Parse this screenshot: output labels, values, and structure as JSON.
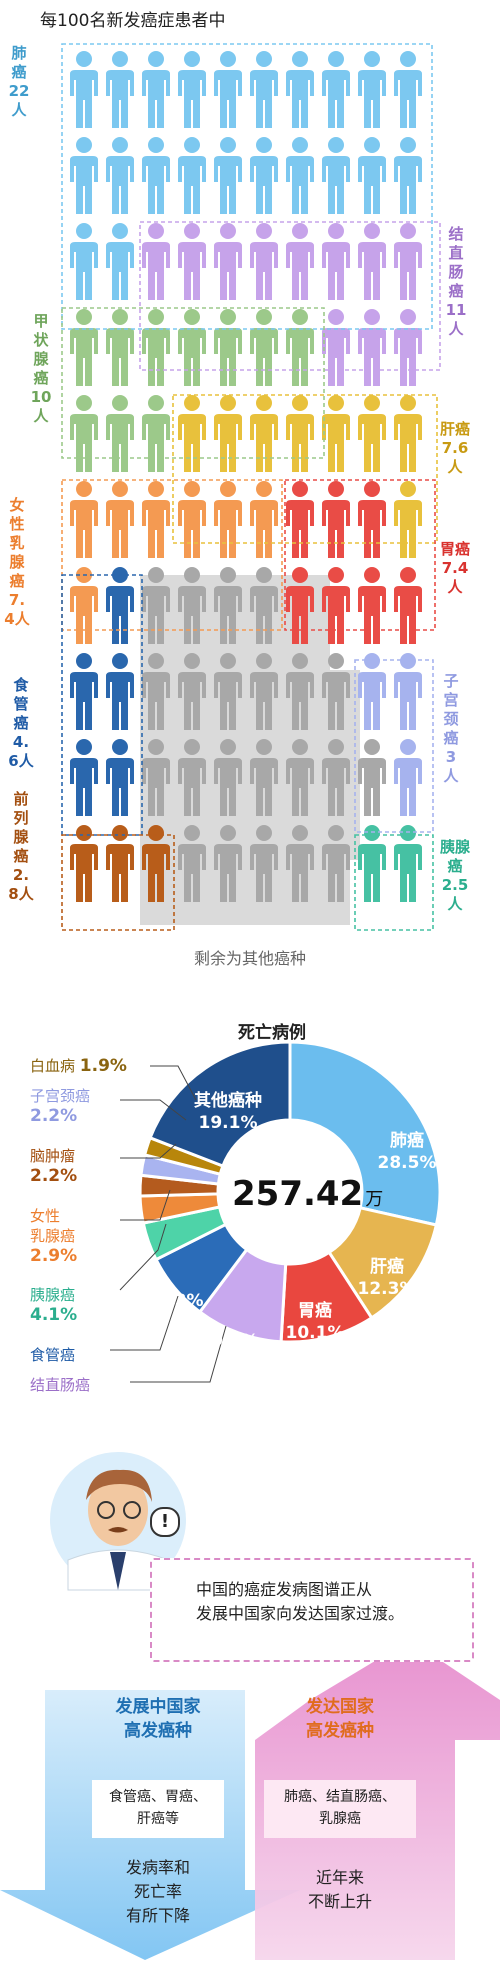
{
  "pictogram": {
    "title": "每100名新发癌症患者中",
    "rest_label": "剩余为其他癌种",
    "colors": {
      "lung": "#7cc8f0",
      "colorectal": "#c6a3ea",
      "thyroid": "#9cc98a",
      "liver": "#e8c13c",
      "breast": "#f49a52",
      "stomach": "#e94c46",
      "esophagus": "#2a67ad",
      "cervical": "#a6b3ee",
      "prostate": "#b85d1a",
      "pancreas": "#46c1a3",
      "other": "#a8a8a8",
      "other_bg": "#dadada"
    },
    "labels": {
      "lung": {
        "name": "肺癌",
        "value": "22人",
        "color": "#3f9ccc"
      },
      "colorectal": {
        "name": "结直肠癌",
        "value": "11人",
        "color": "#9b6fc8"
      },
      "thyroid": {
        "name": "甲状腺癌",
        "value": "10人",
        "color": "#6fa55b"
      },
      "liver": {
        "name": "肝癌",
        "value": "7.6人",
        "color": "#c89a12"
      },
      "breast": {
        "name": "女性乳腺癌",
        "value": "7.4人",
        "color": "#ec7e2e"
      },
      "stomach": {
        "name": "胃癌",
        "value": "7.4人",
        "color": "#d9322e"
      },
      "esophagus": {
        "name": "食管癌",
        "value": "4.6人",
        "color": "#1f5ba6"
      },
      "cervical": {
        "name": "子宫颈癌",
        "value": "3人",
        "color": "#8f9ae0"
      },
      "prostate": {
        "name": "前列腺癌",
        "value": "2.8人",
        "color": "#a34f10"
      },
      "pancreas": {
        "name": "胰腺癌",
        "value": "2.5人",
        "color": "#2bae8e"
      }
    },
    "grid": [
      [
        "lung",
        "lung",
        "lung",
        "lung",
        "lung",
        "lung",
        "lung",
        "lung",
        "lung",
        "lung"
      ],
      [
        "lung",
        "lung",
        "lung",
        "lung",
        "lung",
        "lung",
        "lung",
        "lung",
        "lung",
        "lung"
      ],
      [
        "lung",
        "lung",
        "colorectal",
        "colorectal",
        "colorectal",
        "colorectal",
        "colorectal",
        "colorectal",
        "colorectal",
        "colorectal"
      ],
      [
        "thyroid",
        "thyroid",
        "thyroid",
        "thyroid",
        "thyroid",
        "thyroid",
        "thyroid",
        "colorectal",
        "colorectal",
        "colorectal"
      ],
      [
        "thyroid",
        "thyroid",
        "thyroid",
        "liver",
        "liver",
        "liver",
        "liver",
        "liver",
        "liver",
        "liver"
      ],
      [
        "breast",
        "breast",
        "breast",
        "breast",
        "breast",
        "breast",
        "stomach",
        "stomach",
        "stomach",
        "liver"
      ],
      [
        "breast",
        "esophagus",
        "other",
        "other",
        "other",
        "other",
        "stomach",
        "stomach",
        "stomach",
        "stomach"
      ],
      [
        "esophagus",
        "esophagus",
        "other",
        "other",
        "other",
        "other",
        "other",
        "other",
        "cervical",
        "cervical"
      ],
      [
        "esophagus",
        "esophagus",
        "other",
        "other",
        "other",
        "other",
        "other",
        "other",
        "other",
        "cervical"
      ],
      [
        "prostate",
        "prostate",
        "prostate",
        "other",
        "other",
        "other",
        "other",
        "other",
        "pancreas",
        "pancreas"
      ]
    ]
  },
  "chart_data": {
    "type": "pie",
    "title": "死亡病例",
    "total": "257.42",
    "unit": "万",
    "slices": [
      {
        "name": "肺癌",
        "value": 28.5,
        "color": "#6bbdee"
      },
      {
        "name": "肝癌",
        "value": 12.3,
        "color": "#e6b550"
      },
      {
        "name": "胃癌",
        "value": 10.1,
        "color": "#e9473f"
      },
      {
        "name": "结直肠癌",
        "value": 9.3,
        "color": "#c8a8ee"
      },
      {
        "name": "食管癌",
        "value": 7.3,
        "color": "#2b6cb8"
      },
      {
        "name": "胰腺癌",
        "value": 4.1,
        "color": "#4ed3a8"
      },
      {
        "name": "女性乳腺癌",
        "value": 2.9,
        "color": "#ee8a3a"
      },
      {
        "name": "脑肿瘤",
        "value": 2.2,
        "color": "#b45b1e"
      },
      {
        "name": "子宫颈癌",
        "value": 2.2,
        "color": "#a9b4f0"
      },
      {
        "name": "白血病",
        "value": 1.9,
        "color": "#b8860b"
      },
      {
        "name": "其他癌种",
        "value": 19.1,
        "color": "#1f4f8c"
      }
    ],
    "inner_labels": {
      "lung": {
        "name": "肺癌",
        "value": "28.5%"
      },
      "liver": {
        "name": "肝癌",
        "value": "12.3%"
      },
      "stomach": {
        "name": "胃癌",
        "value": "10.1%"
      },
      "colorectal": "9.3%",
      "esophagus": "7.3%",
      "other": {
        "name": "其他癌种",
        "value": "19.1%"
      }
    },
    "outer_labels": {
      "leukemia": {
        "name": "白血病",
        "value": "1.9%"
      },
      "cervical": {
        "name": "子宫颈癌",
        "value": "2.2%"
      },
      "brain": {
        "name": "脑肿瘤",
        "value": "2.2%"
      },
      "breast": {
        "name1": "女性",
        "name2": "乳腺癌",
        "value": "2.9%"
      },
      "pancreas": {
        "name": "胰腺癌",
        "value": "4.1%"
      },
      "esophagus": {
        "name": "食管癌"
      },
      "colorectal": {
        "name": "结直肠癌"
      }
    }
  },
  "summary": {
    "speech_line1": "中国的癌症发病图谱正从",
    "speech_line2": "发展中国家向发达国家过渡。",
    "exclaim": "!",
    "developing": {
      "title1": "发展中国家",
      "title2": "高发癌种",
      "box1": "食管癌、胃癌、",
      "box2": "肝癌等",
      "trend1": "发病率和",
      "trend2": "死亡率",
      "trend3": "有所下降",
      "color": "#1f6fb2"
    },
    "developed": {
      "title1": "发达国家",
      "title2": "高发癌种",
      "box1": "肺癌、结直肠癌、",
      "box2": "乳腺癌",
      "trend1": "近年来",
      "trend2": "不断上升",
      "color": "#e06c1e"
    }
  }
}
